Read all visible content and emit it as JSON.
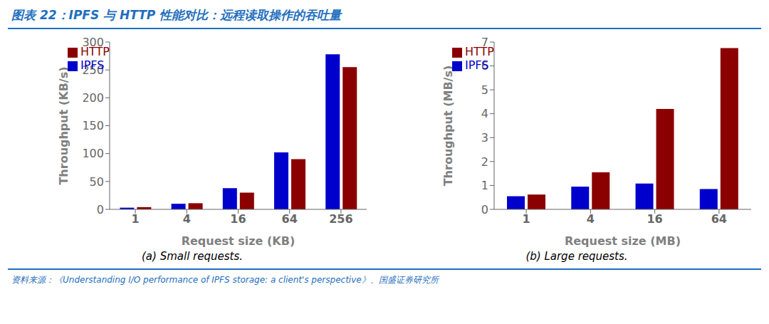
{
  "title": "图表 22：IPFS 与 HTTP 性能对比：远程读取操作的吞吐量",
  "annotations": [
    "资料来源：《Understanding I/O performance of IPFS storage: a client's perspective》、国盛证券研究所"
  ],
  "chart_data": [
    {
      "type": "bar",
      "subtitle": "(a)  Small requests.",
      "xlabel": "Request size (KB)",
      "ylabel": "Throughput (KB/s)",
      "categories": [
        "1",
        "4",
        "16",
        "64",
        "256"
      ],
      "series": [
        {
          "name": "IPFS",
          "color": "#0000CC",
          "values": [
            3,
            10,
            38,
            102,
            278
          ]
        },
        {
          "name": "HTTP",
          "color": "#8B0000",
          "values": [
            4,
            11,
            30,
            90,
            255
          ]
        }
      ],
      "ylim": [
        0,
        300
      ],
      "yticks": [
        0,
        50,
        100,
        150,
        200,
        250,
        300
      ],
      "legend": "upper left",
      "grid": false
    },
    {
      "type": "bar",
      "subtitle": "(b)  Large requests.",
      "xlabel": "Request size (MB)",
      "ylabel": "Throughput (MB/s)",
      "categories": [
        "1",
        "4",
        "16",
        "64"
      ],
      "series": [
        {
          "name": "IPFS",
          "color": "#0000CC",
          "values": [
            0.55,
            0.95,
            1.08,
            0.85
          ]
        },
        {
          "name": "HTTP",
          "color": "#8B0000",
          "values": [
            0.62,
            1.55,
            4.2,
            6.75
          ]
        }
      ],
      "ylim": [
        0,
        7
      ],
      "yticks": [
        0,
        1,
        2,
        3,
        4,
        5,
        6,
        7
      ],
      "legend": "upper left",
      "grid": false
    }
  ]
}
